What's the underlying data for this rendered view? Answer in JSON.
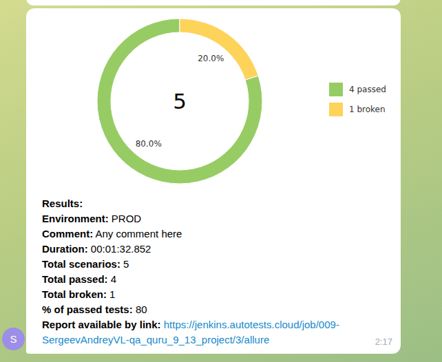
{
  "chart_data": {
    "type": "pie",
    "donut": true,
    "categories": [
      "4 passed",
      "1 broken"
    ],
    "values": [
      80,
      20
    ],
    "value_labels": [
      "80.0%",
      "20.0%"
    ],
    "colors": [
      "#97cc64",
      "#fed35a"
    ],
    "total": 5,
    "data_labels": true,
    "legend": "right"
  },
  "message": {
    "heading": "Results:",
    "fields": [
      {
        "label": "Environment:",
        "value": "PROD"
      },
      {
        "label": "Comment:",
        "value": "Any comment here"
      },
      {
        "label": "Duration:",
        "value": "00:01:32.852"
      },
      {
        "label": "Total scenarios:",
        "value": 5
      },
      {
        "label": "Total passed:",
        "value": 4
      },
      {
        "label": "Total broken:",
        "value": 1
      },
      {
        "label": "% of passed tests:",
        "value": 80
      }
    ],
    "link_label": "Report available by link:",
    "link": "https://jenkins.autotests.cloud/job/009-SergeevAndreyVL-qa_quru_9_13_project/3/allure",
    "time": "2:17",
    "avatar": "S"
  }
}
